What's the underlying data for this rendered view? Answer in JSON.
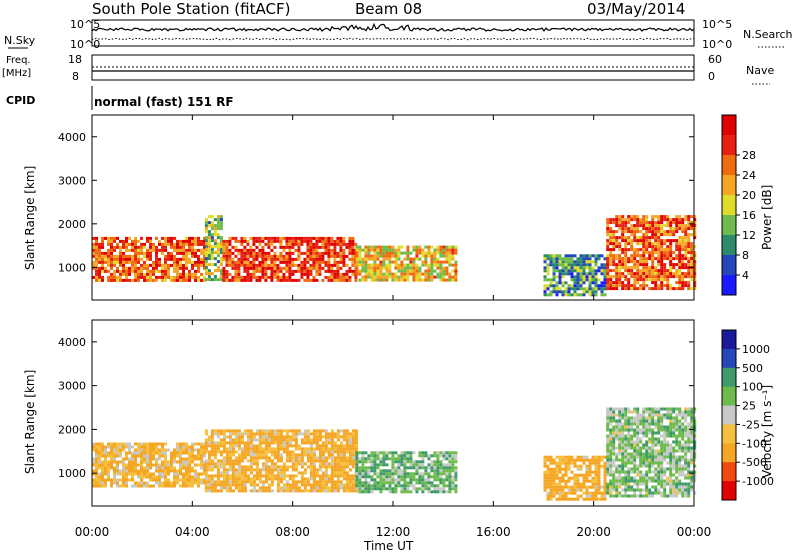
{
  "header": {
    "station": "South Pole Station (fitACF)",
    "beam": "Beam 08",
    "date": "03/May/2014"
  },
  "top_panels": {
    "nsky_label": "N.Sky",
    "nsky_ticks": [
      "10^5",
      "10^0"
    ],
    "nsearch_label": "N.Search",
    "nsearch_ticks": [
      "10^5",
      "10^0"
    ],
    "freq_label": "Freq.",
    "freq_unit": "[MHz]",
    "freq_ticks": [
      "18",
      "8"
    ],
    "nave_label": "Nave",
    "nave_ticks": [
      "60",
      "0"
    ],
    "cpid_label": "CPID",
    "cpid_text": "normal (fast) 151 RF"
  },
  "colors": {
    "power_scale": [
      "#1a1aff",
      "#2448b8",
      "#2d8a6a",
      "#6dbb4a",
      "#dede2a",
      "#f5a623",
      "#f06a10",
      "#e82010",
      "#e00000"
    ],
    "velocity_scale": [
      "#e00000",
      "#f04a10",
      "#f5a623",
      "#f5c040",
      "#c8c8c8",
      "#6dbb4a",
      "#3d9a6a",
      "#2448b8",
      "#1a1a9a"
    ]
  },
  "chart_data": [
    {
      "type": "heatmap",
      "title": "",
      "ylabel": "Slant Range [km]",
      "yticks": [
        "1000",
        "2000",
        "3000",
        "4000"
      ],
      "ylim": [
        250,
        4500
      ],
      "xticks": [
        "00:00",
        "04:00",
        "08:00",
        "12:00",
        "16:00",
        "20:00",
        "00:00"
      ],
      "xlim_hours": [
        0,
        24
      ],
      "colorbar_label": "Power [dB]",
      "colorbar_ticks": [
        "4",
        "8",
        "12",
        "16",
        "20",
        "24",
        "28"
      ],
      "echo_regions": [
        {
          "t_start": 0.0,
          "t_end": 4.5,
          "range_low": 700,
          "range_high": 1700,
          "value": 24
        },
        {
          "t_start": 4.5,
          "t_end": 5.2,
          "range_low": 700,
          "range_high": 2200,
          "value": 14
        },
        {
          "t_start": 5.2,
          "t_end": 10.5,
          "range_low": 700,
          "range_high": 1700,
          "value": 26
        },
        {
          "t_start": 10.5,
          "t_end": 14.5,
          "range_low": 700,
          "range_high": 1500,
          "value": 18
        },
        {
          "t_start": 18.0,
          "t_end": 20.5,
          "range_low": 400,
          "range_high": 1300,
          "value": 10
        },
        {
          "t_start": 20.5,
          "t_end": 24.0,
          "range_low": 500,
          "range_high": 2200,
          "value": 24
        }
      ]
    },
    {
      "type": "heatmap",
      "title": "",
      "ylabel": "Slant Range [km]",
      "yticks": [
        "1000",
        "2000",
        "3000",
        "4000"
      ],
      "ylim": [
        250,
        4500
      ],
      "xticks": [
        "00:00",
        "04:00",
        "08:00",
        "12:00",
        "16:00",
        "20:00",
        "00:00"
      ],
      "xlim_hours": [
        0,
        24
      ],
      "xlabel": "Time UT",
      "colorbar_label": "Velocity [m s⁻¹]",
      "colorbar_ticks": [
        "1000",
        "500",
        "100",
        "25",
        "-25",
        "-100",
        "-500",
        "-1000"
      ],
      "echo_regions": [
        {
          "t_start": 0.0,
          "t_end": 4.5,
          "range_low": 700,
          "range_high": 1700,
          "value": -100
        },
        {
          "t_start": 4.5,
          "t_end": 10.5,
          "range_low": 600,
          "range_high": 2000,
          "value": -150
        },
        {
          "t_start": 10.5,
          "t_end": 14.5,
          "range_low": 600,
          "range_high": 1500,
          "value": 80
        },
        {
          "t_start": 18.0,
          "t_end": 20.5,
          "range_low": 400,
          "range_high": 1400,
          "value": -200
        },
        {
          "t_start": 20.5,
          "t_end": 24.0,
          "range_low": 500,
          "range_high": 2500,
          "value": 50
        }
      ]
    }
  ]
}
